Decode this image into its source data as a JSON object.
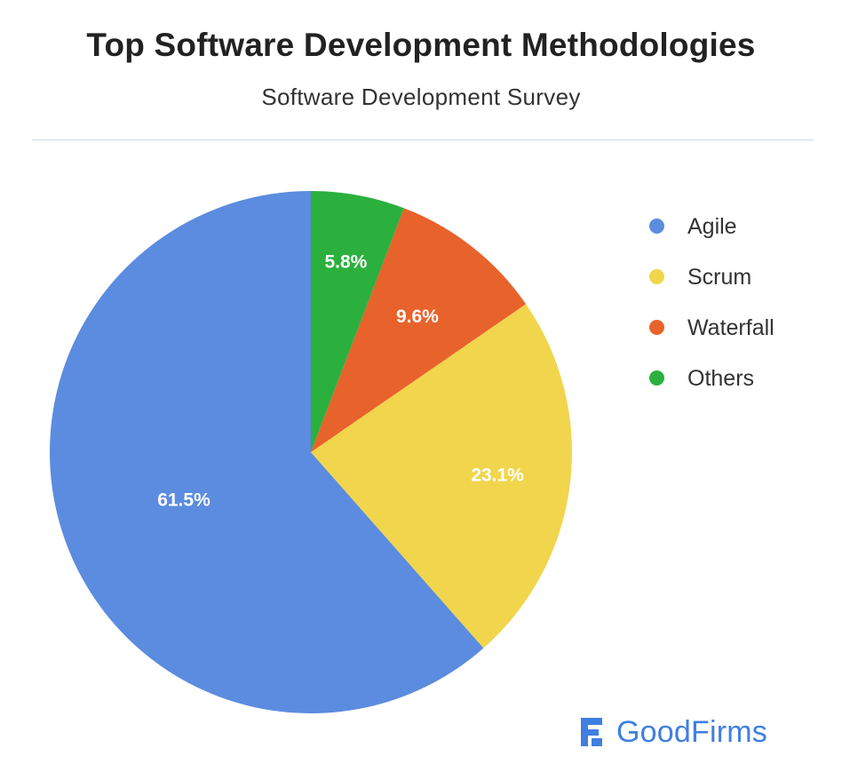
{
  "chart_data": {
    "type": "pie",
    "title": "Top Software Development Methodologies",
    "subtitle": "Software Development Survey",
    "legend_position": "right",
    "slices": [
      {
        "name": "Agile",
        "value": 61.5,
        "label": "61.5%",
        "color": "#5b8cdf"
      },
      {
        "name": "Scrum",
        "value": 23.1,
        "label": "23.1%",
        "color": "#f1d54c"
      },
      {
        "name": "Waterfall",
        "value": 9.6,
        "label": "9.6%",
        "color": "#e8622c"
      },
      {
        "name": "Others",
        "value": 5.8,
        "label": "5.8%",
        "color": "#2bb03d"
      }
    ]
  },
  "branding": {
    "text": "GoodFirms",
    "color": "#3f7fe0",
    "icon": "goodfirms-logo-icon"
  }
}
